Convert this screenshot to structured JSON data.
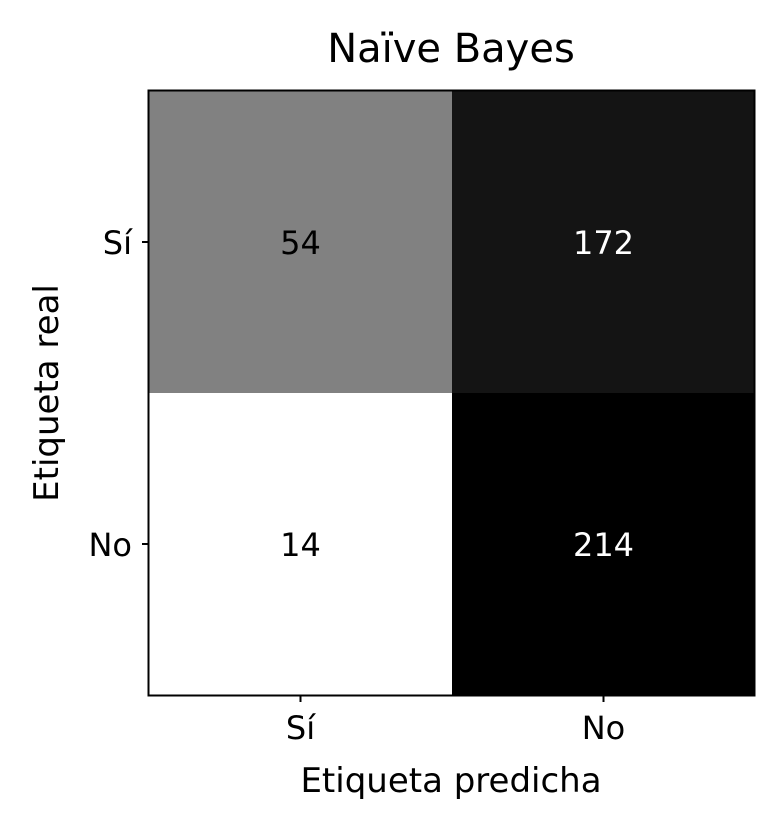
{
  "chart_data": {
    "type": "heatmap",
    "title": "Naïve Bayes",
    "xlabel": "Etiqueta predicha",
    "ylabel": "Etiqueta real",
    "x_categories": [
      "Sí",
      "No"
    ],
    "y_categories": [
      "Sí",
      "No"
    ],
    "values": [
      [
        54,
        172
      ],
      [
        14,
        214
      ]
    ],
    "colormap": "gray_r",
    "vmin": 14,
    "vmax": 214,
    "grid": false,
    "colorbar": false
  }
}
